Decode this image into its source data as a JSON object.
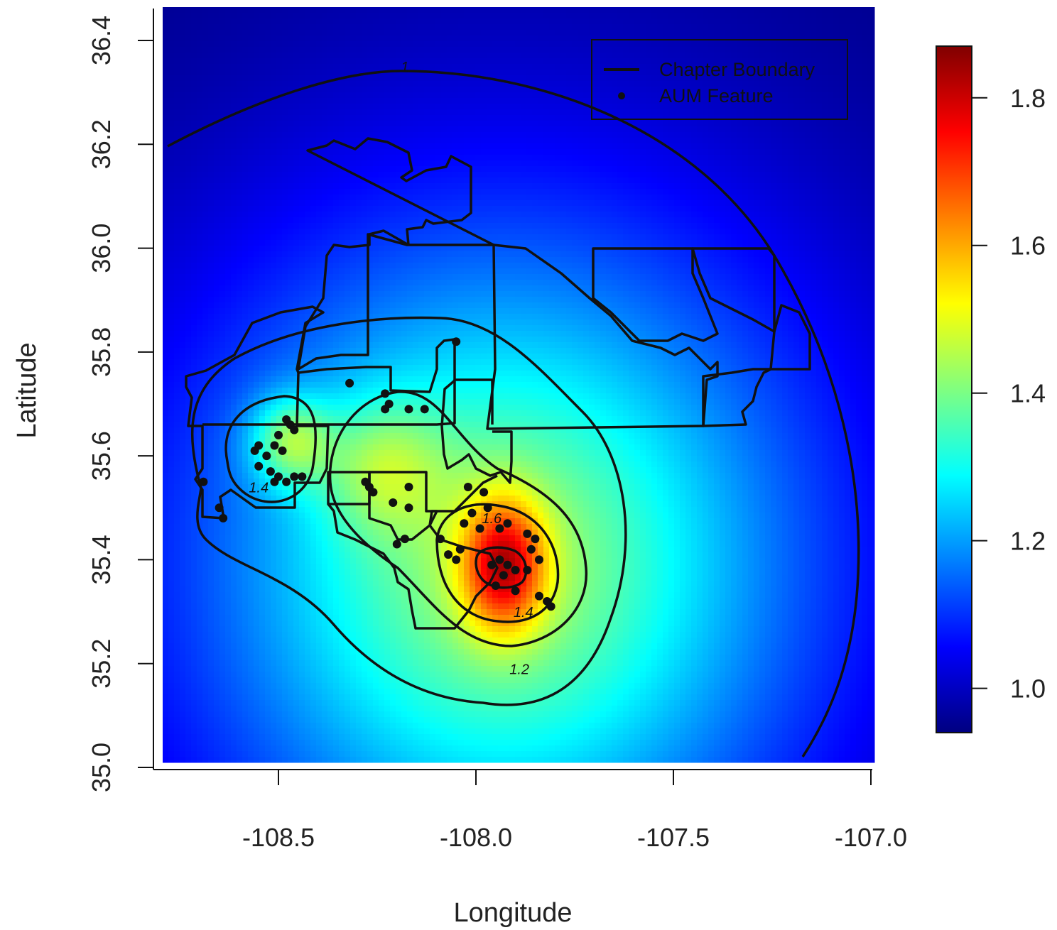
{
  "chart_data": {
    "type": "heatmap",
    "title": "",
    "xlabel": "Longitude",
    "ylabel": "Latitude",
    "xlim": [
      -108.82,
      -107.02
    ],
    "ylim": [
      35.0,
      36.45
    ],
    "x_ticks": [
      -108.5,
      -108.0,
      -107.5,
      -107.0
    ],
    "x_tick_labels": [
      "-108.5",
      "-108.0",
      "-107.5",
      "-107.0"
    ],
    "y_ticks": [
      35.0,
      35.2,
      35.4,
      35.6,
      35.8,
      36.0,
      36.2,
      36.4
    ],
    "y_tick_labels": [
      "35.0",
      "35.2",
      "35.4",
      "35.6",
      "35.8",
      "36.0",
      "36.2",
      "36.4"
    ],
    "colorbar": {
      "range": [
        0.94,
        1.87
      ],
      "ticks": [
        1.0,
        1.2,
        1.4,
        1.6,
        1.8
      ],
      "tick_labels": [
        "1.0",
        "1.2",
        "1.4",
        "1.6",
        "1.8"
      ],
      "colormap": [
        "#000080",
        "#0000ff",
        "#0080ff",
        "#00ffff",
        "#80ff80",
        "#ffff00",
        "#ff8000",
        "#ff0000",
        "#800000"
      ]
    },
    "surface_peak": {
      "lon": -107.93,
      "lat": 35.39,
      "value": 1.87
    },
    "contour_labels": [
      {
        "text": "1",
        "lon": -108.18,
        "lat": 36.34
      },
      {
        "text": "1.2",
        "lon": -107.89,
        "lat": 35.18
      },
      {
        "text": "1.4",
        "lon": -107.88,
        "lat": 35.29
      },
      {
        "text": "1.4",
        "lon": -108.55,
        "lat": 35.53
      },
      {
        "text": "1.6",
        "lon": -107.96,
        "lat": 35.47
      }
    ],
    "legend": {
      "position": "top-right",
      "entries": [
        {
          "label": "Chapter Boundary",
          "symbol": "line"
        },
        {
          "label": "AUM Feature",
          "symbol": "point"
        }
      ]
    },
    "aum_features": [
      {
        "lon": -108.47,
        "lat": 35.66
      },
      {
        "lon": -108.48,
        "lat": 35.67
      },
      {
        "lon": -108.46,
        "lat": 35.65
      },
      {
        "lon": -108.5,
        "lat": 35.64
      },
      {
        "lon": -108.51,
        "lat": 35.62
      },
      {
        "lon": -108.49,
        "lat": 35.61
      },
      {
        "lon": -108.55,
        "lat": 35.62
      },
      {
        "lon": -108.56,
        "lat": 35.61
      },
      {
        "lon": -108.53,
        "lat": 35.6
      },
      {
        "lon": -108.55,
        "lat": 35.58
      },
      {
        "lon": -108.52,
        "lat": 35.57
      },
      {
        "lon": -108.5,
        "lat": 35.56
      },
      {
        "lon": -108.48,
        "lat": 35.55
      },
      {
        "lon": -108.46,
        "lat": 35.56
      },
      {
        "lon": -108.44,
        "lat": 35.56
      },
      {
        "lon": -108.51,
        "lat": 35.55
      },
      {
        "lon": -108.69,
        "lat": 35.55
      },
      {
        "lon": -108.65,
        "lat": 35.5
      },
      {
        "lon": -108.64,
        "lat": 35.48
      },
      {
        "lon": -108.32,
        "lat": 35.74
      },
      {
        "lon": -108.23,
        "lat": 35.72
      },
      {
        "lon": -108.22,
        "lat": 35.7
      },
      {
        "lon": -108.23,
        "lat": 35.69
      },
      {
        "lon": -108.17,
        "lat": 35.69
      },
      {
        "lon": -108.13,
        "lat": 35.69
      },
      {
        "lon": -108.05,
        "lat": 35.82
      },
      {
        "lon": -108.28,
        "lat": 35.55
      },
      {
        "lon": -108.27,
        "lat": 35.54
      },
      {
        "lon": -108.26,
        "lat": 35.53
      },
      {
        "lon": -108.21,
        "lat": 35.51
      },
      {
        "lon": -108.17,
        "lat": 35.54
      },
      {
        "lon": -108.17,
        "lat": 35.5
      },
      {
        "lon": -108.18,
        "lat": 35.44
      },
      {
        "lon": -108.2,
        "lat": 35.43
      },
      {
        "lon": -108.02,
        "lat": 35.54
      },
      {
        "lon": -107.98,
        "lat": 35.53
      },
      {
        "lon": -107.97,
        "lat": 35.5
      },
      {
        "lon": -108.01,
        "lat": 35.49
      },
      {
        "lon": -108.03,
        "lat": 35.47
      },
      {
        "lon": -107.99,
        "lat": 35.46
      },
      {
        "lon": -108.09,
        "lat": 35.44
      },
      {
        "lon": -108.07,
        "lat": 35.41
      },
      {
        "lon": -108.05,
        "lat": 35.4
      },
      {
        "lon": -108.04,
        "lat": 35.42
      },
      {
        "lon": -107.96,
        "lat": 35.39
      },
      {
        "lon": -107.94,
        "lat": 35.4
      },
      {
        "lon": -107.92,
        "lat": 35.39
      },
      {
        "lon": -107.9,
        "lat": 35.38
      },
      {
        "lon": -107.93,
        "lat": 35.37
      },
      {
        "lon": -107.87,
        "lat": 35.45
      },
      {
        "lon": -107.85,
        "lat": 35.44
      },
      {
        "lon": -107.86,
        "lat": 35.42
      },
      {
        "lon": -107.84,
        "lat": 35.4
      },
      {
        "lon": -107.87,
        "lat": 35.38
      },
      {
        "lon": -107.95,
        "lat": 35.35
      },
      {
        "lon": -107.9,
        "lat": 35.34
      },
      {
        "lon": -107.84,
        "lat": 35.33
      },
      {
        "lon": -107.82,
        "lat": 35.32
      },
      {
        "lon": -107.81,
        "lat": 35.31
      },
      {
        "lon": -107.92,
        "lat": 35.47
      },
      {
        "lon": -107.94,
        "lat": 35.46
      }
    ]
  }
}
